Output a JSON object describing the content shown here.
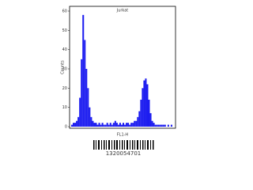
{
  "chart_data": {
    "type": "histogram",
    "title": "Jurkat",
    "x_label": "FL1-H",
    "y_label": "Counts",
    "bins": [
      0,
      1,
      2,
      3,
      4,
      5,
      6,
      7,
      8,
      9,
      10,
      11,
      12,
      13,
      14,
      15,
      16,
      17,
      18,
      19,
      20,
      21,
      22,
      23,
      24,
      25,
      26,
      27,
      28,
      29,
      30,
      31,
      32,
      33,
      34,
      35,
      36,
      37,
      38,
      39,
      40,
      41,
      42,
      43,
      44,
      45,
      46,
      47,
      48,
      49,
      50,
      51,
      52,
      53,
      54,
      55,
      56,
      57,
      58,
      59,
      60,
      61,
      62,
      63,
      64
    ],
    "counts": [
      1,
      2,
      2,
      3,
      5,
      15,
      35,
      58,
      45,
      30,
      20,
      10,
      5,
      3,
      2,
      2,
      1,
      2,
      1,
      2,
      1,
      1,
      2,
      1,
      2,
      1,
      2,
      3,
      2,
      1,
      2,
      1,
      2,
      1,
      2,
      2,
      1,
      2,
      2,
      3,
      3,
      5,
      8,
      14,
      20,
      24,
      25,
      22,
      14,
      7,
      3,
      2,
      1,
      1,
      1,
      1,
      1,
      1,
      1,
      0,
      1,
      0,
      1,
      0
    ],
    "color": "#1c1cf0",
    "xlim": [
      0,
      64
    ],
    "ylim": [
      0,
      60
    ],
    "yticks": [
      0,
      10,
      20,
      30,
      40,
      50,
      60
    ]
  },
  "barcode_number": "1320054701"
}
